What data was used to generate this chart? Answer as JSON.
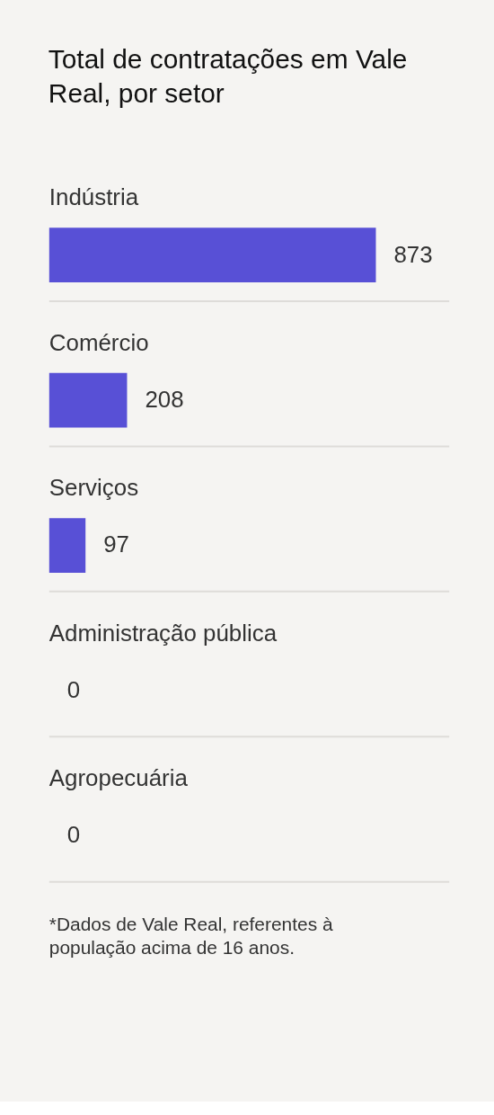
{
  "chart_data": {
    "type": "bar",
    "orientation": "horizontal",
    "title": "Total de contratações em Vale Real, por setor",
    "categories": [
      "Indústria",
      "Comércio",
      "Serviços",
      "Administração pública",
      "Agropecuária"
    ],
    "values": [
      873,
      208,
      97,
      0,
      0
    ],
    "color": "#5850d6",
    "data_labels": true,
    "grid": "y",
    "annotations": [
      "*Dados de Vale Real, referentes à população acima de 16 anos."
    ]
  }
}
